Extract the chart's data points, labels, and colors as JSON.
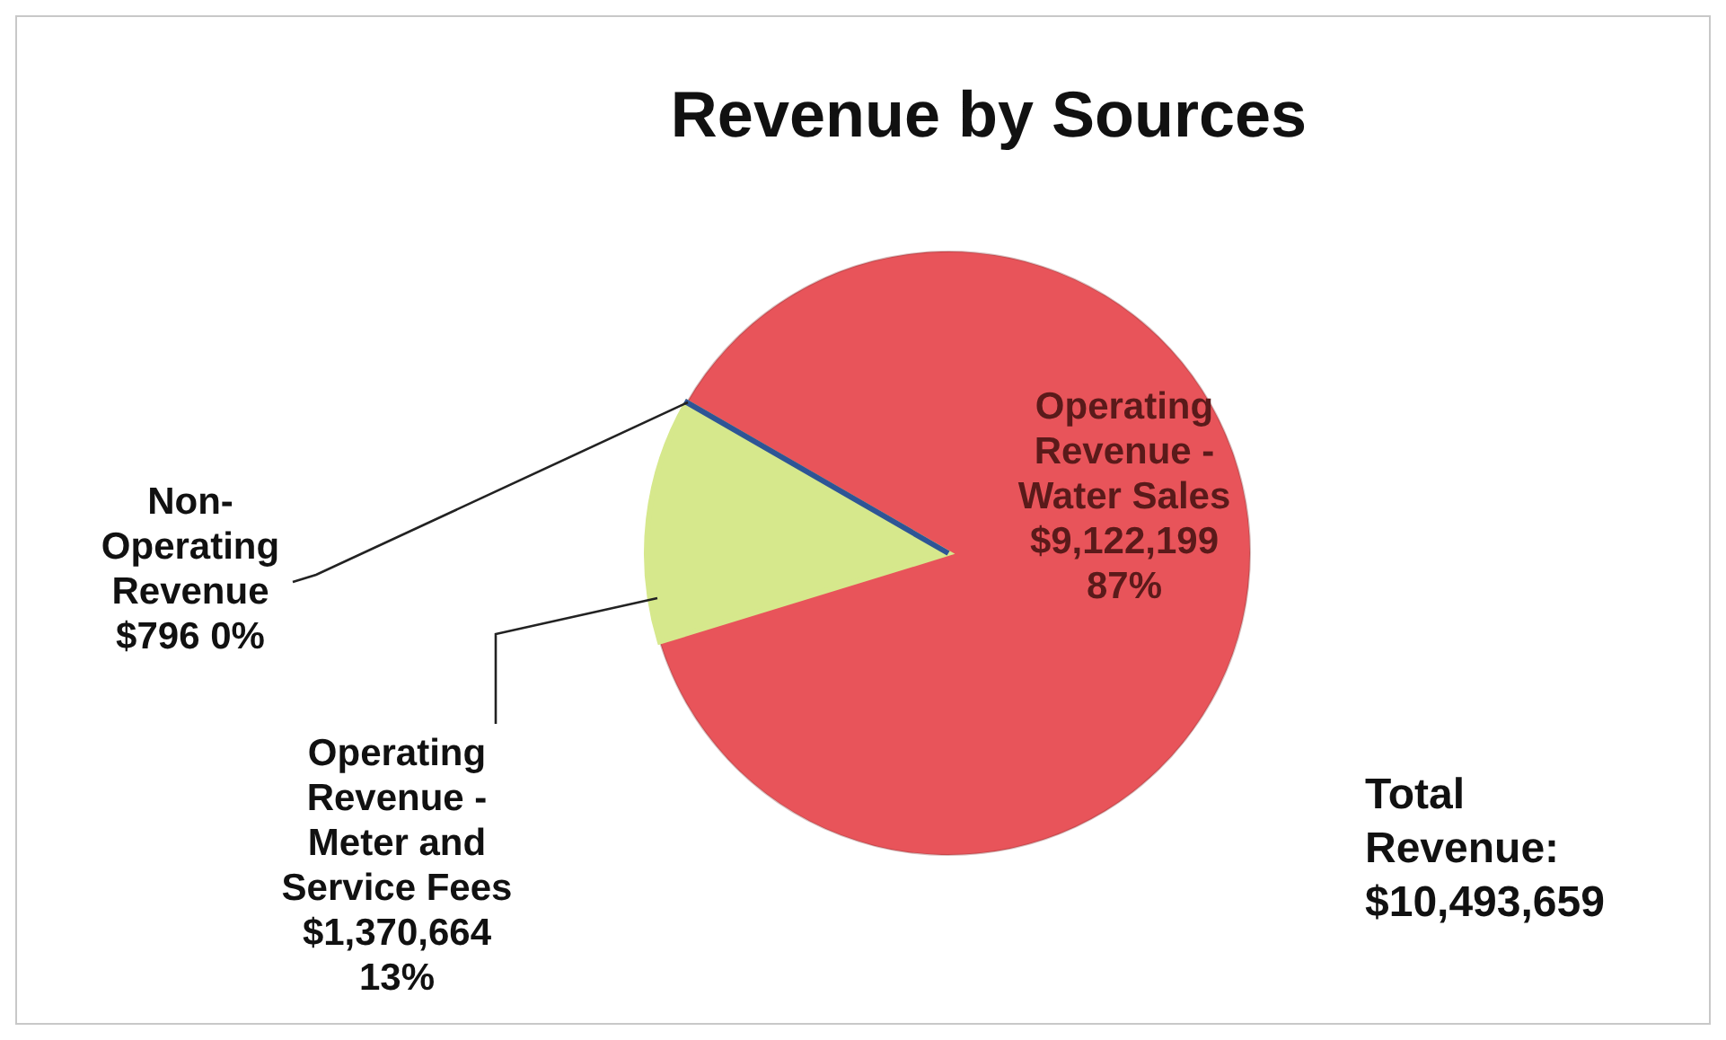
{
  "chart_data": {
    "type": "pie",
    "title": "Revenue by Sources",
    "categories": [
      "Operating Revenue - Water Sales",
      "Operating Revenue - Meter and Service Fees",
      "Non-Operating Revenue"
    ],
    "values": [
      9122199,
      1370664,
      796
    ],
    "colors": [
      "#e8545a",
      "#d6e88c",
      "#2e5596"
    ],
    "value_labels": [
      "$9,122,199\n87%",
      "$1,370,664\n13%",
      "$796  0%"
    ],
    "annotations": [
      "Total Revenue: $10,493,659"
    ]
  }
}
